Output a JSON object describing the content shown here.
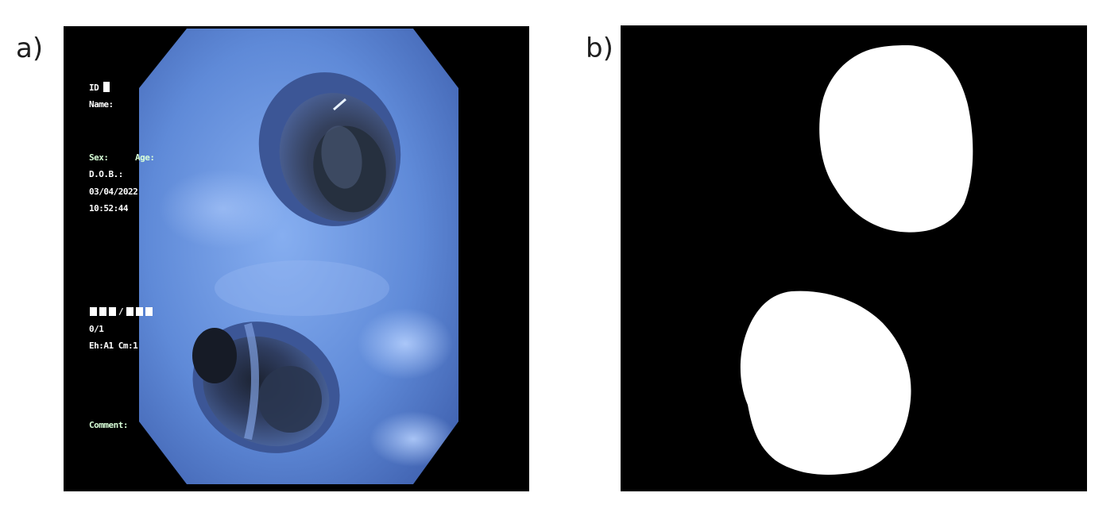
{
  "panels": {
    "a": {
      "label": "a)",
      "overlay": {
        "id_label": "ID",
        "name_label": "Name:",
        "sex_label": "Sex:",
        "age_label": "Age:",
        "dob_label": "D.O.B.:",
        "date": "03/04/2022",
        "time": "10:52:44",
        "counter": "0/1",
        "settings": "Eh:A1 Cm:1",
        "comment_label": "Comment:"
      },
      "colors": {
        "tissue_light": "#7fa6e8",
        "tissue_mid": "#4f78c9",
        "tissue_dark": "#2c3f78",
        "lumen_dark": "#1b2230"
      }
    },
    "b": {
      "label": "b)",
      "colors": {
        "background": "#000000",
        "mask": "#ffffff"
      }
    }
  }
}
